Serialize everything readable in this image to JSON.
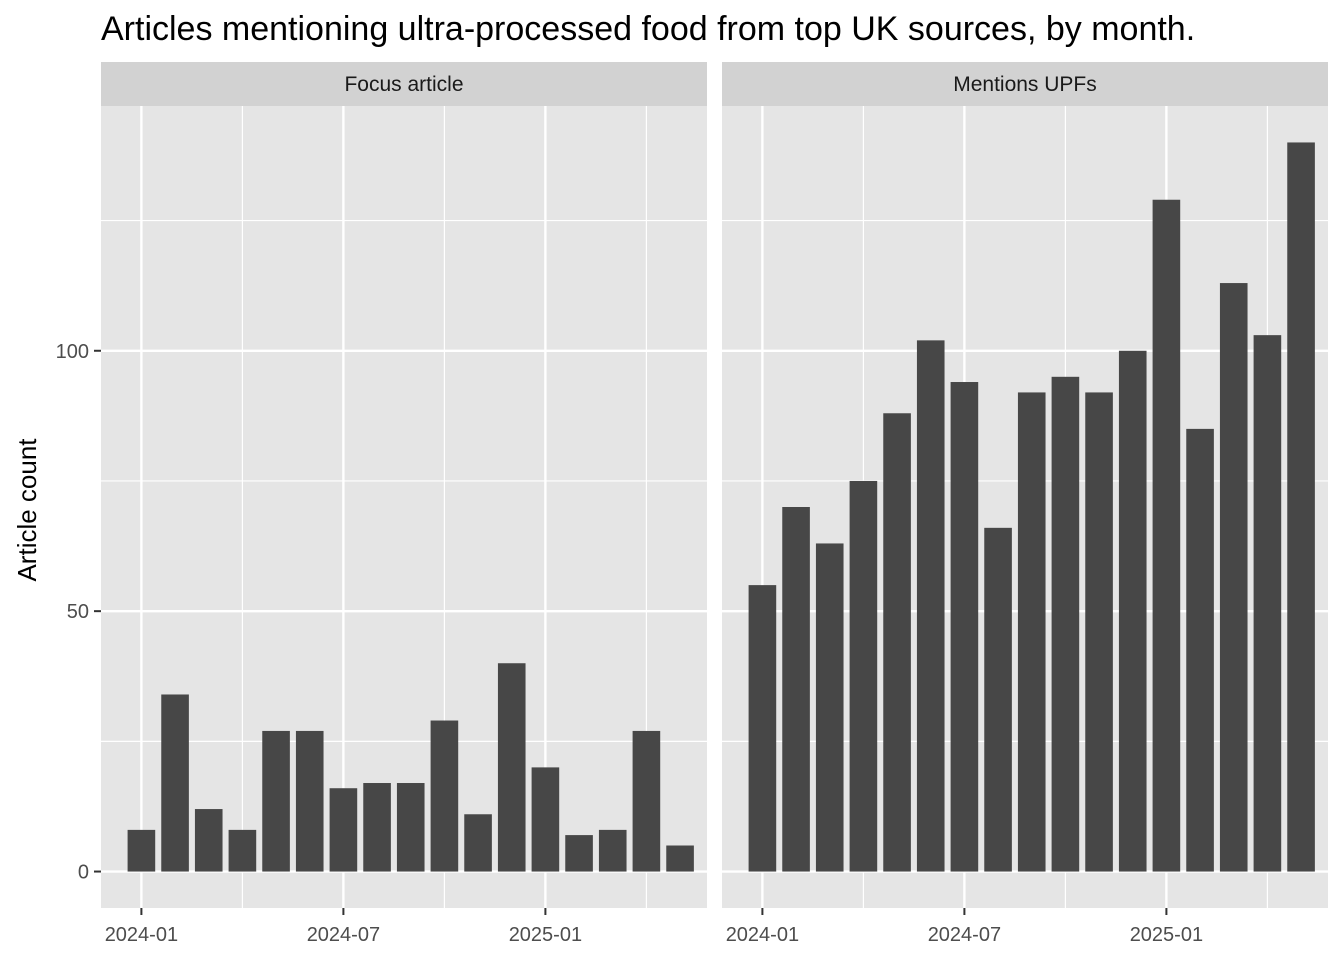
{
  "chart_data": {
    "type": "bar",
    "title": "Articles mentioning ultra-processed food from top UK sources, by month.",
    "ylabel": "Article count",
    "xlabel": "",
    "x": [
      "2024-01",
      "2024-02",
      "2024-03",
      "2024-04",
      "2024-05",
      "2024-06",
      "2024-07",
      "2024-08",
      "2024-09",
      "2024-10",
      "2024-11",
      "2024-12",
      "2025-01",
      "2025-02",
      "2025-03",
      "2025-04",
      "2025-05"
    ],
    "xticks": [
      "2024-01",
      "2024-07",
      "2025-01"
    ],
    "yticks": [
      0,
      50,
      100
    ],
    "ylim": [
      -7,
      147
    ],
    "grid": true,
    "bar_color": "#474747",
    "panel_background": "#e5e5e5",
    "strip_background": "#d2d2d2",
    "grid_color": "#ffffff",
    "panels": [
      {
        "name": "Focus article",
        "values": [
          8,
          34,
          12,
          8,
          27,
          27,
          16,
          17,
          17,
          29,
          11,
          40,
          20,
          7,
          8,
          27,
          5
        ]
      },
      {
        "name": "Mentions UPFs",
        "values": [
          55,
          70,
          63,
          75,
          88,
          102,
          94,
          66,
          92,
          95,
          92,
          100,
          129,
          85,
          113,
          103,
          140
        ]
      }
    ]
  }
}
